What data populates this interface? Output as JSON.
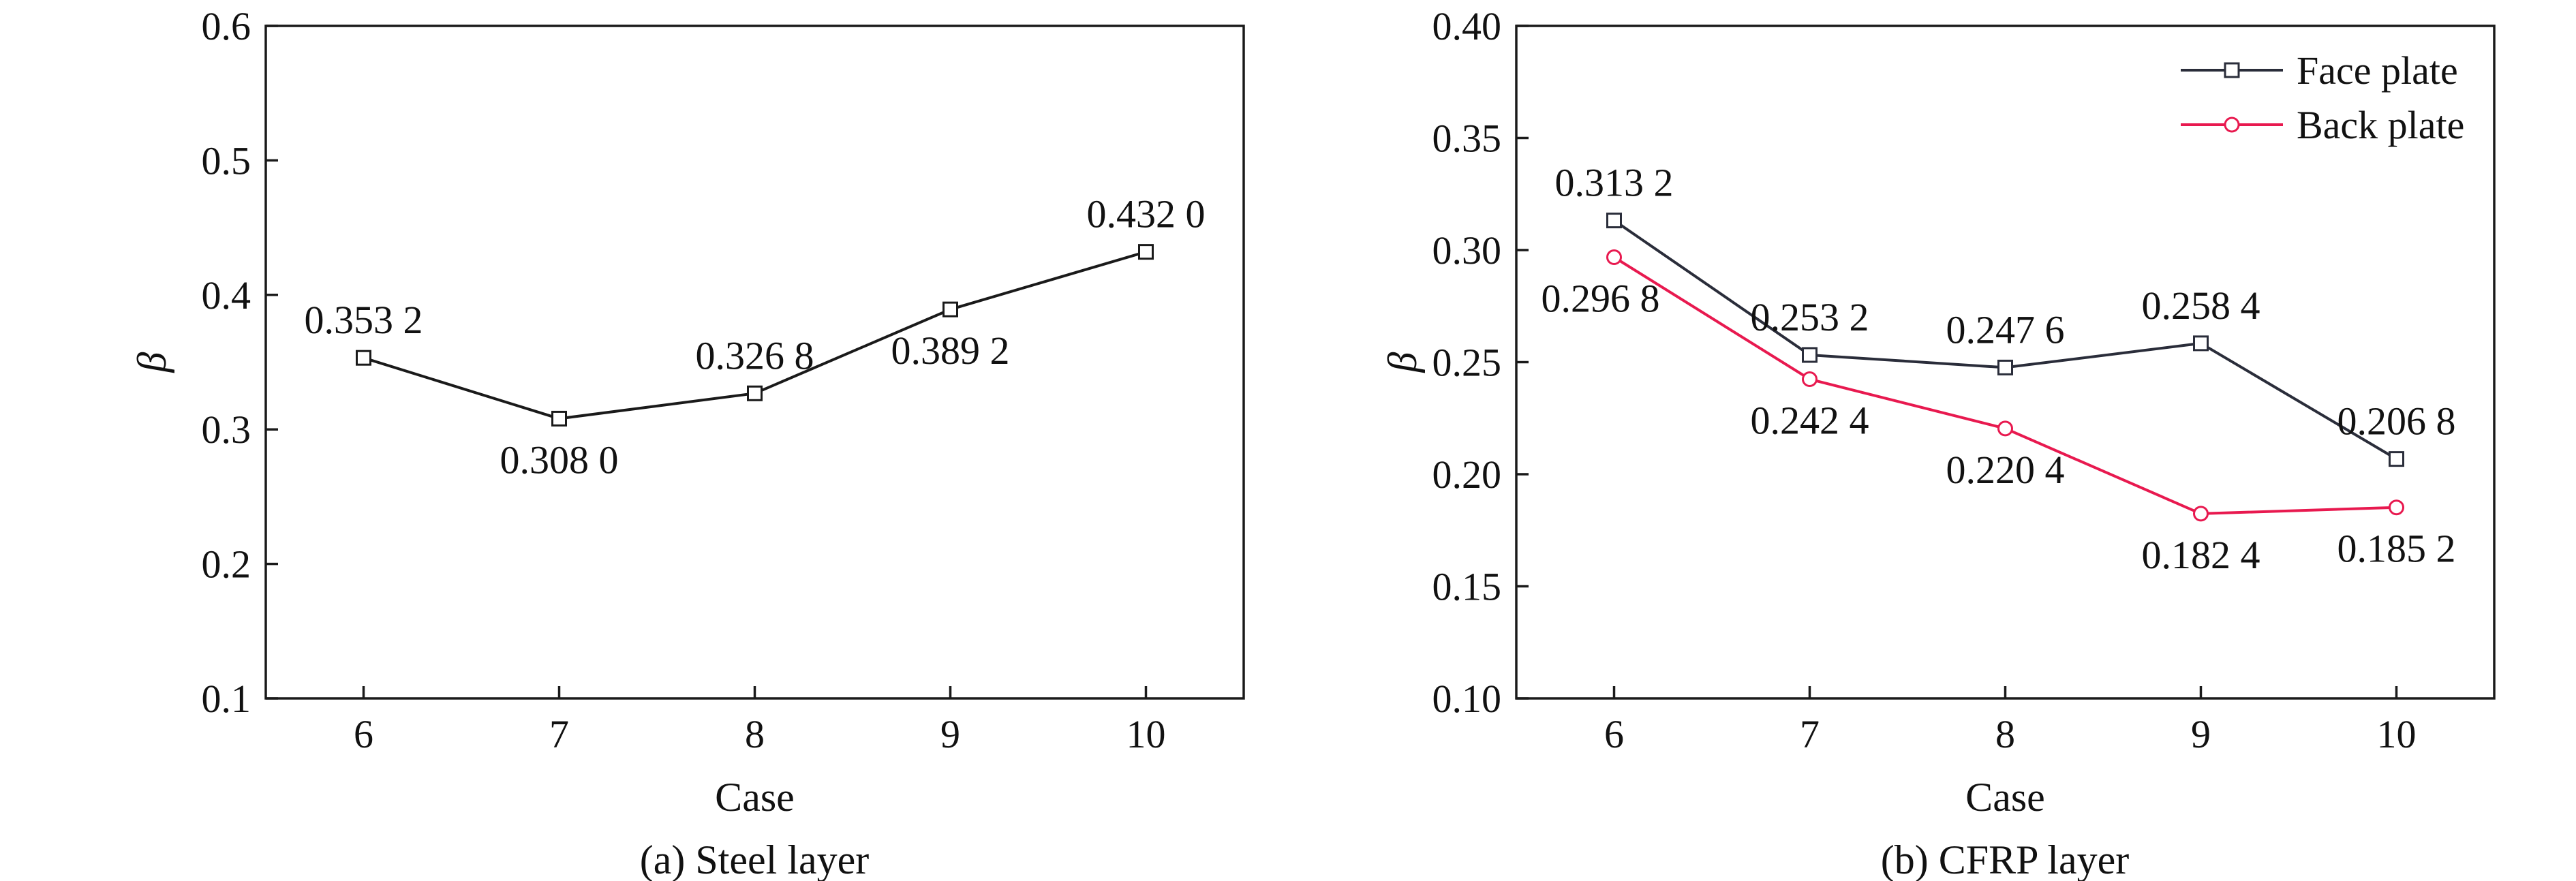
{
  "chart_data": [
    {
      "type": "line",
      "caption": "(a) Steel layer",
      "xlabel": "Case",
      "ylabel": "β",
      "categories": [
        "6",
        "7",
        "8",
        "9",
        "10"
      ],
      "ylim": [
        0.1,
        0.6
      ],
      "yticks": [
        "0.1",
        "0.2",
        "0.3",
        "0.4",
        "0.5",
        "0.6"
      ],
      "grid": false,
      "series": [
        {
          "color": "#1a1a1a",
          "marker": "square",
          "values": [
            0.3532,
            0.308,
            0.3268,
            0.3892,
            0.432
          ],
          "labels": [
            "0.353 2",
            "0.308 0",
            "0.326 8",
            "0.389 2",
            "0.432 0"
          ],
          "label_position": [
            "above",
            "below",
            "above",
            "below",
            "above"
          ]
        }
      ]
    },
    {
      "type": "line",
      "caption": "(b) CFRP layer",
      "xlabel": "Case",
      "ylabel": "β",
      "categories": [
        "6",
        "7",
        "8",
        "9",
        "10"
      ],
      "ylim": [
        0.1,
        0.4
      ],
      "yticks": [
        "0.10",
        "0.15",
        "0.20",
        "0.25",
        "0.30",
        "0.35",
        "0.40"
      ],
      "grid": false,
      "legend_position": "top-right",
      "series": [
        {
          "name": "Face plate",
          "color": "#2a2d3a",
          "marker": "square",
          "values": [
            0.3132,
            0.2532,
            0.2476,
            0.2584,
            0.2068
          ],
          "labels": [
            "0.313 2",
            "0.253 2",
            "0.247 6",
            "0.258 4",
            "0.206 8"
          ],
          "label_position": [
            "above",
            "above",
            "above",
            "above",
            "above"
          ]
        },
        {
          "name": "Back plate",
          "color": "#e8194f",
          "marker": "circle",
          "values": [
            0.2968,
            0.2424,
            0.2204,
            0.1824,
            0.1852
          ],
          "labels": [
            "0.296 8",
            "0.242 4",
            "0.220 4",
            "0.182 4",
            "0.185 2"
          ],
          "label_position": [
            "below",
            "below",
            "below",
            "below",
            "below"
          ]
        }
      ]
    }
  ]
}
